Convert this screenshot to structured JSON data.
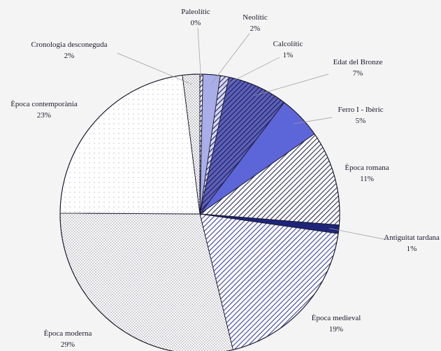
{
  "chart_data": {
    "type": "pie",
    "title": "",
    "direction": "clockwise",
    "start": "12 o'clock",
    "slices": [
      {
        "label": "Paleolític",
        "value": 0,
        "display": "0%",
        "fill": "stripes",
        "color": "#1c1c5a",
        "bg": "#ffffff"
      },
      {
        "label": "Neolític",
        "value": 2,
        "display": "2%",
        "fill": "solid",
        "color": "#a9aee8"
      },
      {
        "label": "Calcolític",
        "value": 1,
        "display": "1%",
        "fill": "stripes",
        "color": "#1c1c5a",
        "bg": "#d7d9f3"
      },
      {
        "label": "Edat del Bronze",
        "value": 7,
        "display": "7%",
        "fill": "stripes",
        "color": "#1c1c5a",
        "bg": "#5c60b8"
      },
      {
        "label": "Ferro I - Ibèric",
        "value": 5,
        "display": "5%",
        "fill": "solid",
        "color": "#5d66d9"
      },
      {
        "label": "Època romana",
        "value": 11,
        "display": "11%",
        "fill": "stripes",
        "color": "#2b2b55",
        "bg": "#ffffff"
      },
      {
        "label": "Antiguitat tardana",
        "value": 1,
        "display": "1%",
        "fill": "solid",
        "color": "#1e2478"
      },
      {
        "label": "Època medieval",
        "value": 19,
        "display": "19%",
        "fill": "stripes",
        "color": "#3a3f9e",
        "bg": "#ffffff"
      },
      {
        "label": "Època moderna",
        "value": 29,
        "display": "29%",
        "fill": "dots-dense",
        "color": "#555566",
        "bg": "#ffffff"
      },
      {
        "label": "Època contemporània",
        "value": 23,
        "display": "23%",
        "fill": "dots-sparse",
        "color": "#777788",
        "bg": "#ffffff"
      },
      {
        "label": "Cronologia desconeguda",
        "value": 2,
        "display": "2%",
        "fill": "dots-dense",
        "color": "#333344",
        "bg": "#ffffff"
      }
    ]
  }
}
